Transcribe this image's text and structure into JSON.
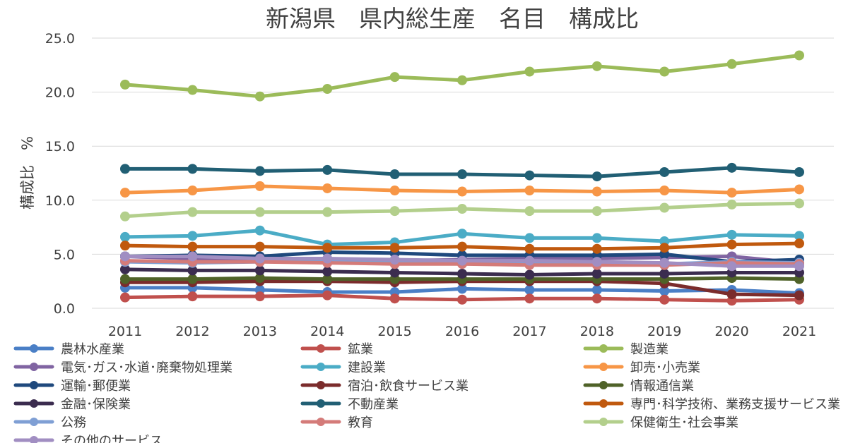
{
  "chart_data": {
    "type": "line",
    "title": "新潟県　県内総生産　名目　構成比",
    "ylabel": "構成比　%",
    "xlabel": "",
    "x": [
      "2011",
      "2012",
      "2013",
      "2014",
      "2015",
      "2016",
      "2017",
      "2018",
      "2019",
      "2020",
      "2021"
    ],
    "ylim": [
      0,
      25
    ],
    "yticks": [
      "0.0",
      "5.0",
      "10.0",
      "15.0",
      "20.0",
      "25.0"
    ],
    "grid": true,
    "legend_position": "bottom",
    "series": [
      {
        "name": "農林水産業",
        "color": "#4a7fc6",
        "values": [
          1.9,
          1.9,
          1.7,
          1.5,
          1.5,
          1.8,
          1.7,
          1.7,
          1.6,
          1.7,
          1.4
        ]
      },
      {
        "name": "鉱業",
        "color": "#c0504d",
        "values": [
          1.0,
          1.1,
          1.1,
          1.2,
          0.9,
          0.8,
          0.9,
          0.9,
          0.8,
          0.7,
          0.8
        ]
      },
      {
        "name": "製造業",
        "color": "#9bbb59",
        "values": [
          20.7,
          20.2,
          19.6,
          20.3,
          21.4,
          21.1,
          21.9,
          22.4,
          21.9,
          22.6,
          23.4
        ]
      },
      {
        "name": "電気･ガス･水道･廃棄物処理業",
        "color": "#8064a2",
        "values": [
          4.8,
          4.6,
          4.5,
          4.4,
          4.4,
          4.5,
          4.6,
          4.6,
          4.7,
          4.8,
          4.2
        ]
      },
      {
        "name": "建設業",
        "color": "#4bacc6",
        "values": [
          6.6,
          6.7,
          7.2,
          5.9,
          6.1,
          6.9,
          6.5,
          6.5,
          6.2,
          6.8,
          6.7
        ]
      },
      {
        "name": "卸売･小売業",
        "color": "#f79646",
        "values": [
          10.7,
          10.9,
          11.3,
          11.1,
          10.9,
          10.8,
          10.9,
          10.8,
          10.9,
          10.7,
          11.0
        ]
      },
      {
        "name": "運輸･郵便業",
        "color": "#1f497d",
        "values": [
          4.8,
          4.9,
          4.8,
          5.2,
          5.1,
          4.9,
          4.9,
          4.9,
          5.0,
          4.3,
          4.5
        ]
      },
      {
        "name": "宿泊･飲食サービス業",
        "color": "#7b2c2c",
        "values": [
          2.4,
          2.4,
          2.5,
          2.5,
          2.4,
          2.5,
          2.5,
          2.5,
          2.3,
          1.3,
          1.2
        ]
      },
      {
        "name": "情報通信業",
        "color": "#4f6228",
        "values": [
          2.7,
          2.7,
          2.8,
          2.7,
          2.7,
          2.7,
          2.7,
          2.7,
          2.7,
          2.8,
          2.7
        ]
      },
      {
        "name": "金融･保険業",
        "color": "#3b2c4f",
        "values": [
          3.6,
          3.5,
          3.5,
          3.4,
          3.3,
          3.2,
          3.1,
          3.2,
          3.2,
          3.3,
          3.3
        ]
      },
      {
        "name": "不動産業",
        "color": "#215f74",
        "values": [
          12.9,
          12.9,
          12.7,
          12.8,
          12.4,
          12.4,
          12.3,
          12.2,
          12.6,
          13.0,
          12.6
        ]
      },
      {
        "name": "専門･科学技術、業務支援サービス業",
        "color": "#c0590e",
        "values": [
          5.8,
          5.7,
          5.7,
          5.6,
          5.6,
          5.7,
          5.5,
          5.5,
          5.6,
          5.9,
          6.0
        ]
      },
      {
        "name": "公務",
        "color": "#7f9fd4",
        "values": [
          4.3,
          4.2,
          4.3,
          4.3,
          4.2,
          4.2,
          4.1,
          4.1,
          4.1,
          4.3,
          4.2
        ]
      },
      {
        "name": "教育",
        "color": "#d47b79",
        "values": [
          4.4,
          4.3,
          4.3,
          4.2,
          4.1,
          4.1,
          4.0,
          4.0,
          4.0,
          4.2,
          4.1
        ]
      },
      {
        "name": "保健衛生･社会事業",
        "color": "#b3cf8c",
        "values": [
          8.5,
          8.9,
          8.9,
          8.9,
          9.0,
          9.2,
          9.0,
          9.0,
          9.3,
          9.6,
          9.7
        ]
      },
      {
        "name": "その他のサービス",
        "color": "#a18ec2",
        "values": [
          4.8,
          4.8,
          4.6,
          4.6,
          4.5,
          4.4,
          4.4,
          4.3,
          4.2,
          3.9,
          3.9
        ]
      }
    ]
  }
}
